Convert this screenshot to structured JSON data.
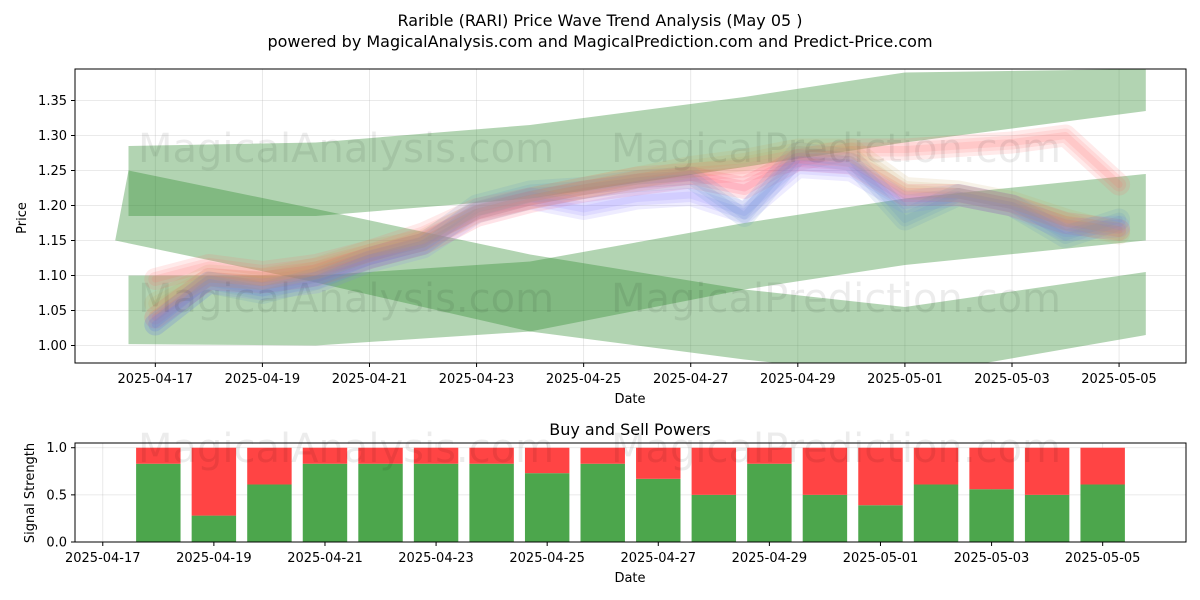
{
  "chart_data": [
    {
      "type": "area",
      "title": "Rarible (RARI) Price Wave Trend Analysis (May 05 )",
      "subtitle": "powered by MagicalAnalysis.com and MagicalPrediction.com and Predict-Price.com",
      "xlabel": "Date",
      "ylabel": "Price",
      "x_ticks": [
        "2025-04-17",
        "2025-04-19",
        "2025-04-21",
        "2025-04-23",
        "2025-04-25",
        "2025-04-27",
        "2025-04-29",
        "2025-05-01",
        "2025-05-03",
        "2025-05-05"
      ],
      "y_ticks": [
        1.0,
        1.05,
        1.1,
        1.15,
        1.2,
        1.25,
        1.3,
        1.35
      ],
      "xlim": [
        "2025-04-15T12:00",
        "2025-05-06T06:00"
      ],
      "ylim": [
        0.975,
        1.395
      ],
      "grid": true,
      "green_bands": [
        {
          "upper": [
            [
              "2025-04-16T12:00",
              1.285
            ],
            [
              "2025-04-20",
              1.29
            ],
            [
              "2025-04-24",
              1.315
            ],
            [
              "2025-04-28",
              1.355
            ],
            [
              "2025-05-01",
              1.39
            ],
            [
              "2025-05-05T12:00",
              1.395
            ]
          ],
          "lower": [
            [
              "2025-04-16T12:00",
              1.185
            ],
            [
              "2025-04-20",
              1.185
            ],
            [
              "2025-04-24",
              1.21
            ],
            [
              "2025-04-28",
              1.255
            ],
            [
              "2025-05-01",
              1.29
            ],
            [
              "2025-05-05T12:00",
              1.335
            ]
          ]
        },
        {
          "upper": [
            [
              "2025-04-16T12:00",
              1.1
            ],
            [
              "2025-04-20",
              1.1
            ],
            [
              "2025-04-24",
              1.12
            ],
            [
              "2025-04-28",
              1.175
            ],
            [
              "2025-05-01",
              1.21
            ],
            [
              "2025-05-05T12:00",
              1.245
            ]
          ],
          "lower": [
            [
              "2025-04-16T12:00",
              1.002
            ],
            [
              "2025-04-20",
              1.0
            ],
            [
              "2025-04-24",
              1.02
            ],
            [
              "2025-04-28",
              1.08
            ],
            [
              "2025-05-01",
              1.115
            ],
            [
              "2025-05-05T12:00",
              1.15
            ]
          ]
        },
        {
          "upper": [
            [
              "2025-04-16T12:00",
              1.25
            ],
            [
              "2025-04-20",
              1.195
            ],
            [
              "2025-04-24",
              1.13
            ],
            [
              "2025-04-28",
              1.08
            ],
            [
              "2025-05-01",
              1.055
            ],
            [
              "2025-05-05T12:00",
              1.105
            ]
          ],
          "lower": [
            [
              "2025-04-16T06:00",
              1.15
            ],
            [
              "2025-04-20",
              1.09
            ],
            [
              "2025-04-24",
              1.02
            ],
            [
              "2025-04-28",
              0.98
            ],
            [
              "2025-05-01",
              0.955
            ],
            [
              "2025-05-05T12:00",
              1.015
            ]
          ]
        }
      ],
      "wave_series": [
        {
          "color": "#ff6b6b",
          "points": [
            [
              "2025-04-17",
              1.095
            ],
            [
              "2025-04-18",
              1.115
            ],
            [
              "2025-04-19",
              1.105
            ],
            [
              "2025-04-20",
              1.115
            ],
            [
              "2025-04-21",
              1.135
            ],
            [
              "2025-04-22",
              1.16
            ],
            [
              "2025-04-23",
              1.195
            ],
            [
              "2025-04-24",
              1.21
            ],
            [
              "2025-04-25",
              1.225
            ],
            [
              "2025-04-26",
              1.24
            ],
            [
              "2025-04-27",
              1.245
            ],
            [
              "2025-04-28",
              1.25
            ],
            [
              "2025-04-29",
              1.265
            ],
            [
              "2025-04-30",
              1.28
            ],
            [
              "2025-05-01",
              1.28
            ],
            [
              "2025-05-02",
              1.285
            ],
            [
              "2025-05-03",
              1.29
            ],
            [
              "2025-05-04",
              1.3
            ],
            [
              "2025-05-05",
              1.23
            ]
          ]
        },
        {
          "color": "#ff3b5c",
          "points": [
            [
              "2025-04-17",
              1.04
            ],
            [
              "2025-04-18",
              1.095
            ],
            [
              "2025-04-19",
              1.09
            ],
            [
              "2025-04-20",
              1.1
            ],
            [
              "2025-04-21",
              1.125
            ],
            [
              "2025-04-22",
              1.145
            ],
            [
              "2025-04-23",
              1.185
            ],
            [
              "2025-04-24",
              1.205
            ],
            [
              "2025-04-25",
              1.22
            ],
            [
              "2025-04-26",
              1.23
            ],
            [
              "2025-04-27",
              1.24
            ],
            [
              "2025-04-28",
              1.225
            ],
            [
              "2025-04-29",
              1.265
            ],
            [
              "2025-04-30",
              1.26
            ],
            [
              "2025-05-01",
              1.215
            ],
            [
              "2025-05-02",
              1.215
            ],
            [
              "2025-05-03",
              1.2
            ],
            [
              "2025-05-04",
              1.175
            ],
            [
              "2025-05-05",
              1.165
            ]
          ]
        },
        {
          "color": "#8a7bff",
          "points": [
            [
              "2025-04-17",
              1.03
            ],
            [
              "2025-04-18",
              1.09
            ],
            [
              "2025-04-19",
              1.08
            ],
            [
              "2025-04-20",
              1.09
            ],
            [
              "2025-04-21",
              1.12
            ],
            [
              "2025-04-22",
              1.14
            ],
            [
              "2025-04-23",
              1.19
            ],
            [
              "2025-04-24",
              1.21
            ],
            [
              "2025-04-25",
              1.195
            ],
            [
              "2025-04-26",
              1.21
            ],
            [
              "2025-04-27",
              1.215
            ],
            [
              "2025-04-28",
              1.19
            ],
            [
              "2025-04-29",
              1.255
            ],
            [
              "2025-04-30",
              1.25
            ],
            [
              "2025-05-01",
              1.205
            ],
            [
              "2025-05-02",
              1.215
            ],
            [
              "2025-05-03",
              1.2
            ],
            [
              "2025-05-04",
              1.165
            ],
            [
              "2025-05-05",
              1.17
            ]
          ]
        },
        {
          "color": "#5b8fc7",
          "points": [
            [
              "2025-04-17",
              1.03
            ],
            [
              "2025-04-18",
              1.09
            ],
            [
              "2025-04-19",
              1.075
            ],
            [
              "2025-04-20",
              1.095
            ],
            [
              "2025-04-21",
              1.125
            ],
            [
              "2025-04-22",
              1.145
            ],
            [
              "2025-04-23",
              1.2
            ],
            [
              "2025-04-24",
              1.22
            ],
            [
              "2025-04-25",
              1.225
            ],
            [
              "2025-04-26",
              1.235
            ],
            [
              "2025-04-27",
              1.24
            ],
            [
              "2025-04-28",
              1.185
            ],
            [
              "2025-04-29",
              1.275
            ],
            [
              "2025-04-30",
              1.265
            ],
            [
              "2025-05-01",
              1.18
            ],
            [
              "2025-05-02",
              1.215
            ],
            [
              "2025-05-03",
              1.2
            ],
            [
              "2025-05-04",
              1.155
            ],
            [
              "2025-05-05",
              1.18
            ]
          ]
        },
        {
          "color": "#c9a25e",
          "points": [
            [
              "2025-04-17",
              1.06
            ],
            [
              "2025-04-18",
              1.1
            ],
            [
              "2025-04-19",
              1.095
            ],
            [
              "2025-04-20",
              1.11
            ],
            [
              "2025-04-21",
              1.135
            ],
            [
              "2025-04-22",
              1.15
            ],
            [
              "2025-04-23",
              1.19
            ],
            [
              "2025-04-24",
              1.21
            ],
            [
              "2025-04-25",
              1.225
            ],
            [
              "2025-04-26",
              1.24
            ],
            [
              "2025-04-27",
              1.255
            ],
            [
              "2025-04-28",
              1.265
            ],
            [
              "2025-04-29",
              1.28
            ],
            [
              "2025-04-30",
              1.28
            ],
            [
              "2025-05-01",
              1.225
            ],
            [
              "2025-05-02",
              1.22
            ],
            [
              "2025-05-03",
              1.205
            ],
            [
              "2025-05-04",
              1.18
            ],
            [
              "2025-05-05",
              1.16
            ]
          ]
        }
      ],
      "watermarks": [
        "MagicalAnalysis.com",
        "MagicalPrediction.com"
      ]
    },
    {
      "type": "bar",
      "title": "Buy and Sell Powers",
      "xlabel": "Date",
      "ylabel": "Signal Strength",
      "x_ticks": [
        "2025-04-17",
        "2025-04-19",
        "2025-04-21",
        "2025-04-23",
        "2025-04-25",
        "2025-04-27",
        "2025-04-29",
        "2025-05-01",
        "2025-05-03",
        "2025-05-05"
      ],
      "y_ticks": [
        0.0,
        0.5,
        1.0
      ],
      "xlim": [
        "2025-04-16T12:00",
        "2025-05-06T12:00"
      ],
      "ylim": [
        0,
        1.05
      ],
      "grid": true,
      "categories": [
        "2025-04-18",
        "2025-04-19",
        "2025-04-20",
        "2025-04-21",
        "2025-04-22",
        "2025-04-23",
        "2025-04-24",
        "2025-04-25",
        "2025-04-26",
        "2025-04-27",
        "2025-04-28",
        "2025-04-29",
        "2025-04-30",
        "2025-05-01",
        "2025-05-02",
        "2025-05-03",
        "2025-05-04",
        "2025-05-05"
      ],
      "series": [
        {
          "color": "#4ca64c",
          "values": [
            0.83,
            0.28,
            0.61,
            0.83,
            0.83,
            0.83,
            0.83,
            0.73,
            0.83,
            0.67,
            0.5,
            0.83,
            0.5,
            0.39,
            0.61,
            0.56,
            0.5,
            0.61
          ]
        },
        {
          "color": "#ff4444",
          "values": [
            0.17,
            0.72,
            0.39,
            0.17,
            0.17,
            0.17,
            0.17,
            0.27,
            0.17,
            0.33,
            0.5,
            0.17,
            0.5,
            0.61,
            0.39,
            0.44,
            0.5,
            0.39
          ]
        }
      ],
      "watermarks": [
        "MagicalAnalysis.com",
        "MagicalPrediction.com"
      ]
    }
  ]
}
